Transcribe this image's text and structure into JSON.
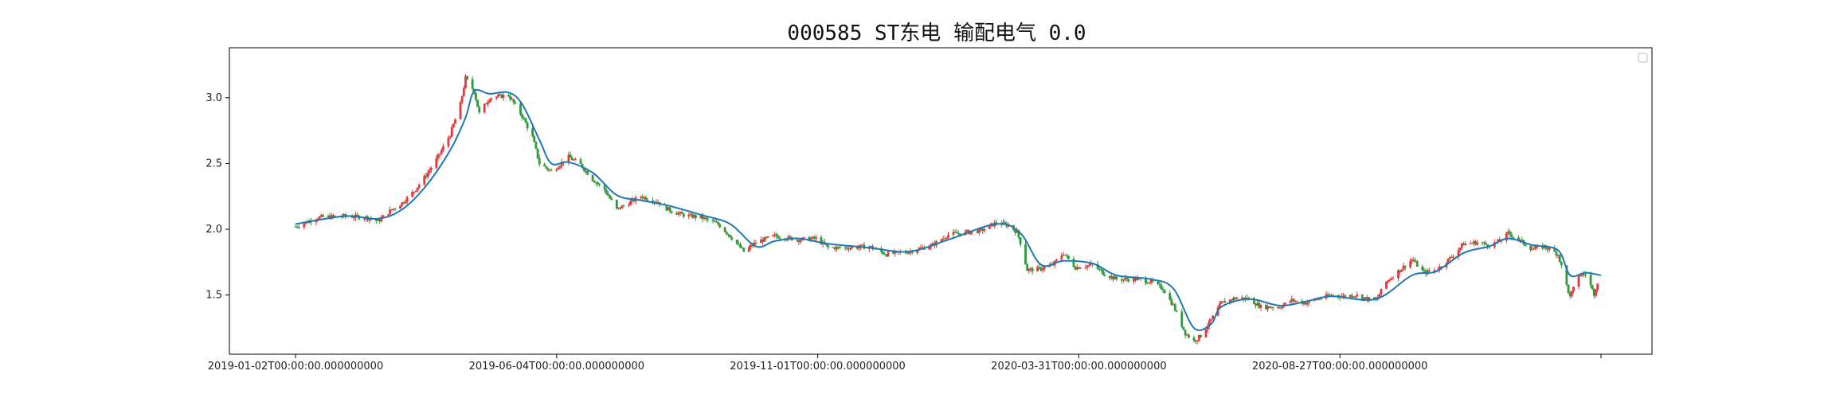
{
  "chart_data": {
    "type": "candlestick",
    "title": "000585 ST东电 输配电气 0.0",
    "xlabel": "",
    "ylabel": "",
    "x_ticks": [
      "2019-01-02T00:00:00.000000000",
      "2019-06-04T00:00:00.000000000",
      "2019-11-01T00:00:00.000000000",
      "2020-03-31T00:00:00.000000000",
      "2020-08-27T00:00:00.000000000",
      ""
    ],
    "y_ticks": [
      "1.5",
      "2.0",
      "2.5",
      "3.0"
    ],
    "ylim": [
      1.05,
      3.38
    ],
    "x_range": [
      "2019-01-02",
      "2021-01-31"
    ],
    "grid": false,
    "legend": "top-right (empty)",
    "colors": {
      "up": "#e8373a",
      "down": "#2e9a3a",
      "ma_line": "#1f77b4"
    },
    "series": [
      {
        "kind": "close_path",
        "points": [
          [
            "2019-01-02",
            2.02
          ],
          [
            "2019-01-15",
            2.09
          ],
          [
            "2019-01-31",
            2.1
          ],
          [
            "2019-02-12",
            2.09
          ],
          [
            "2019-02-19",
            2.06
          ],
          [
            "2019-02-26",
            2.14
          ],
          [
            "2019-03-05",
            2.2
          ],
          [
            "2019-03-12",
            2.29
          ],
          [
            "2019-03-19",
            2.41
          ],
          [
            "2019-03-26",
            2.55
          ],
          [
            "2019-04-02",
            2.72
          ],
          [
            "2019-04-08",
            2.95
          ],
          [
            "2019-04-11",
            3.15
          ],
          [
            "2019-04-16",
            3.05
          ],
          [
            "2019-04-19",
            2.88
          ],
          [
            "2019-04-25",
            3.0
          ],
          [
            "2019-05-06",
            3.02
          ],
          [
            "2019-05-14",
            2.86
          ],
          [
            "2019-05-20",
            2.7
          ],
          [
            "2019-05-24",
            2.5
          ],
          [
            "2019-05-31",
            2.44
          ],
          [
            "2019-06-10",
            2.55
          ],
          [
            "2019-06-17",
            2.49
          ],
          [
            "2019-06-24",
            2.38
          ],
          [
            "2019-07-01",
            2.3
          ],
          [
            "2019-07-08",
            2.15
          ],
          [
            "2019-07-15",
            2.2
          ],
          [
            "2019-07-22",
            2.25
          ],
          [
            "2019-08-01",
            2.21
          ],
          [
            "2019-08-07",
            2.15
          ],
          [
            "2019-08-15",
            2.11
          ],
          [
            "2019-08-26",
            2.09
          ],
          [
            "2019-09-05",
            2.04
          ],
          [
            "2019-09-12",
            1.95
          ],
          [
            "2019-09-20",
            1.83
          ],
          [
            "2019-09-27",
            1.9
          ],
          [
            "2019-10-08",
            1.95
          ],
          [
            "2019-10-22",
            1.92
          ],
          [
            "2019-11-01",
            1.93
          ],
          [
            "2019-11-08",
            1.86
          ],
          [
            "2019-11-20",
            1.86
          ],
          [
            "2019-12-02",
            1.87
          ],
          [
            "2019-12-12",
            1.81
          ],
          [
            "2019-12-25",
            1.83
          ],
          [
            "2020-01-08",
            1.88
          ],
          [
            "2020-01-17",
            1.96
          ],
          [
            "2020-02-05",
            1.99
          ],
          [
            "2020-02-14",
            2.05
          ],
          [
            "2020-02-21",
            2.03
          ],
          [
            "2020-02-26",
            1.98
          ],
          [
            "2020-02-28",
            1.9
          ],
          [
            "2020-03-03",
            1.69
          ],
          [
            "2020-03-11",
            1.7
          ],
          [
            "2020-03-18",
            1.73
          ],
          [
            "2020-03-24",
            1.82
          ],
          [
            "2020-03-31",
            1.71
          ],
          [
            "2020-04-10",
            1.73
          ],
          [
            "2020-04-17",
            1.66
          ],
          [
            "2020-04-24",
            1.62
          ],
          [
            "2020-05-06",
            1.62
          ],
          [
            "2020-05-14",
            1.6
          ],
          [
            "2020-05-21",
            1.55
          ],
          [
            "2020-05-27",
            1.42
          ],
          [
            "2020-06-03",
            1.21
          ],
          [
            "2020-06-08",
            1.15
          ],
          [
            "2020-06-12",
            1.19
          ],
          [
            "2020-06-18",
            1.31
          ],
          [
            "2020-06-24",
            1.44
          ],
          [
            "2020-07-03",
            1.48
          ],
          [
            "2020-07-10",
            1.47
          ],
          [
            "2020-07-17",
            1.41
          ],
          [
            "2020-07-28",
            1.41
          ],
          [
            "2020-08-04",
            1.46
          ],
          [
            "2020-08-12",
            1.44
          ],
          [
            "2020-08-19",
            1.47
          ],
          [
            "2020-08-27",
            1.5
          ],
          [
            "2020-09-03",
            1.49
          ],
          [
            "2020-09-10",
            1.5
          ],
          [
            "2020-09-17",
            1.47
          ],
          [
            "2020-09-22",
            1.46
          ],
          [
            "2020-09-28",
            1.6
          ],
          [
            "2020-10-13",
            1.77
          ],
          [
            "2020-10-20",
            1.67
          ],
          [
            "2020-10-27",
            1.69
          ],
          [
            "2020-11-05",
            1.79
          ],
          [
            "2020-11-12",
            1.89
          ],
          [
            "2020-11-20",
            1.9
          ],
          [
            "2020-11-27",
            1.88
          ],
          [
            "2020-12-03",
            1.91
          ],
          [
            "2020-12-08",
            1.97
          ],
          [
            "2020-12-14",
            1.92
          ],
          [
            "2020-12-22",
            1.85
          ],
          [
            "2020-12-29",
            1.87
          ],
          [
            "2021-01-06",
            1.81
          ],
          [
            "2021-01-13",
            1.48
          ],
          [
            "2021-01-18",
            1.65
          ],
          [
            "2021-01-22",
            1.66
          ],
          [
            "2021-01-27",
            1.51
          ],
          [
            "2021-01-29",
            1.6
          ],
          [
            "2021-01-31",
            1.67
          ]
        ]
      },
      {
        "kind": "moving_average",
        "points": [
          [
            "2019-01-02",
            2.04
          ],
          [
            "2019-01-31",
            2.1
          ],
          [
            "2019-02-19",
            2.08
          ],
          [
            "2019-03-05",
            2.15
          ],
          [
            "2019-03-19",
            2.33
          ],
          [
            "2019-04-02",
            2.6
          ],
          [
            "2019-04-11",
            2.85
          ],
          [
            "2019-04-16",
            3.05
          ],
          [
            "2019-04-25",
            3.03
          ],
          [
            "2019-05-06",
            3.04
          ],
          [
            "2019-05-14",
            2.95
          ],
          [
            "2019-05-24",
            2.68
          ],
          [
            "2019-05-31",
            2.5
          ],
          [
            "2019-06-10",
            2.51
          ],
          [
            "2019-06-24",
            2.43
          ],
          [
            "2019-07-08",
            2.26
          ],
          [
            "2019-07-22",
            2.22
          ],
          [
            "2019-08-07",
            2.18
          ],
          [
            "2019-08-26",
            2.11
          ],
          [
            "2019-09-12",
            2.04
          ],
          [
            "2019-09-27",
            1.87
          ],
          [
            "2019-10-08",
            1.91
          ],
          [
            "2019-10-22",
            1.93
          ],
          [
            "2019-11-08",
            1.89
          ],
          [
            "2019-12-02",
            1.86
          ],
          [
            "2019-12-25",
            1.83
          ],
          [
            "2020-01-17",
            1.92
          ],
          [
            "2020-02-14",
            2.04
          ],
          [
            "2020-02-28",
            1.97
          ],
          [
            "2020-03-11",
            1.73
          ],
          [
            "2020-03-24",
            1.76
          ],
          [
            "2020-04-10",
            1.74
          ],
          [
            "2020-04-24",
            1.65
          ],
          [
            "2020-05-14",
            1.62
          ],
          [
            "2020-05-27",
            1.55
          ],
          [
            "2020-06-08",
            1.25
          ],
          [
            "2020-06-18",
            1.28
          ],
          [
            "2020-06-24",
            1.41
          ],
          [
            "2020-07-10",
            1.47
          ],
          [
            "2020-07-28",
            1.42
          ],
          [
            "2020-08-12",
            1.45
          ],
          [
            "2020-08-27",
            1.49
          ],
          [
            "2020-09-22",
            1.47
          ],
          [
            "2020-10-13",
            1.65
          ],
          [
            "2020-10-27",
            1.68
          ],
          [
            "2020-11-12",
            1.82
          ],
          [
            "2020-11-27",
            1.87
          ],
          [
            "2020-12-08",
            1.93
          ],
          [
            "2020-12-22",
            1.88
          ],
          [
            "2021-01-06",
            1.84
          ],
          [
            "2021-01-13",
            1.65
          ],
          [
            "2021-01-22",
            1.67
          ],
          [
            "2021-01-31",
            1.65
          ]
        ]
      }
    ]
  }
}
